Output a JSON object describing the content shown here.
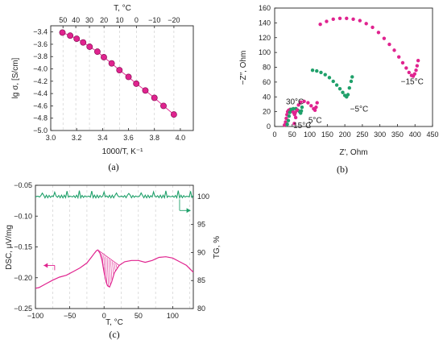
{
  "colors": {
    "magenta": "#e0238f",
    "green": "#1fa06a",
    "dark": "#222222"
  },
  "chart_data": [
    {
      "id": "a",
      "panel_label": "(a)",
      "type": "scatter",
      "xlabel": "1000/T, K⁻¹",
      "ylabel": "lg σ, [S/cm]",
      "top_axis_label": "T, °C",
      "xlim": [
        3.0,
        4.1
      ],
      "ylim": [
        -5.0,
        -3.3
      ],
      "x_ticks": [
        "3.0",
        "3.2",
        "3.4",
        "3.6",
        "3.8",
        "4.0"
      ],
      "y_ticks": [
        "−3.4",
        "−3.6",
        "−3.8",
        "−4.0",
        "−4.2",
        "−4.4",
        "−4.6",
        "−4.8",
        "−5.0"
      ],
      "top_ticks": [
        "50",
        "40",
        "30",
        "20",
        "10",
        "0",
        "−10",
        "−20"
      ],
      "grid": true,
      "series": [
        {
          "color": "#e0238f",
          "points": [
            [
              3.09,
              -3.41
            ],
            [
              3.15,
              -3.46
            ],
            [
              3.2,
              -3.51
            ],
            [
              3.25,
              -3.57
            ],
            [
              3.3,
              -3.64
            ],
            [
              3.36,
              -3.72
            ],
            [
              3.41,
              -3.81
            ],
            [
              3.47,
              -3.91
            ],
            [
              3.53,
              -4.02
            ],
            [
              3.6,
              -4.13
            ],
            [
              3.66,
              -4.24
            ],
            [
              3.73,
              -4.35
            ],
            [
              3.8,
              -4.47
            ],
            [
              3.87,
              -4.6
            ],
            [
              3.95,
              -4.74
            ]
          ]
        }
      ]
    },
    {
      "id": "b",
      "panel_label": "(b)",
      "type": "scatter",
      "xlabel": "Z′, Ohm",
      "ylabel": "−Z″, Ohm",
      "xlim": [
        0,
        450
      ],
      "ylim": [
        0,
        160
      ],
      "x_ticks": [
        "0",
        "50",
        "100",
        "150",
        "200",
        "250",
        "300",
        "350",
        "400",
        "450"
      ],
      "y_ticks": [
        "0",
        "20",
        "40",
        "60",
        "80",
        "100",
        "120",
        "140",
        "160"
      ],
      "grid": false,
      "annotations": [
        "30°C",
        "15°C",
        "5°C",
        "−5°C",
        "−15°C"
      ],
      "series": [
        {
          "label": "30°C",
          "color": "#e0238f",
          "points": [
            [
              28,
              2
            ],
            [
              31,
              6
            ],
            [
              33,
              11
            ],
            [
              35,
              16
            ],
            [
              37,
              20
            ],
            [
              40,
              22
            ],
            [
              44,
              23
            ],
            [
              48,
              22
            ],
            [
              52,
              20
            ],
            [
              55,
              18
            ],
            [
              57,
              16
            ],
            [
              59,
              19
            ],
            [
              61,
              24
            ]
          ]
        },
        {
          "label": "15°C",
          "color": "#1fa06a",
          "points": [
            [
              36,
              3
            ],
            [
              39,
              8
            ],
            [
              41,
              14
            ],
            [
              43,
              19
            ],
            [
              47,
              23
            ],
            [
              53,
              24
            ],
            [
              60,
              24
            ],
            [
              66,
              22
            ],
            [
              71,
              20
            ],
            [
              74,
              18
            ],
            [
              76,
              21
            ],
            [
              78,
              26
            ]
          ]
        },
        {
          "label": "5°C",
          "color": "#e0238f",
          "points": [
            [
              56,
              4
            ],
            [
              60,
              12
            ],
            [
              64,
              22
            ],
            [
              68,
              29
            ],
            [
              74,
              33
            ],
            [
              84,
              34
            ],
            [
              95,
              32
            ],
            [
              104,
              28
            ],
            [
              111,
              24
            ],
            [
              115,
              22
            ],
            [
              118,
              26
            ],
            [
              121,
              32
            ]
          ]
        },
        {
          "label": "−5°C",
          "color": "#1fa06a",
          "points": [
            [
              108,
              76
            ],
            [
              120,
              75
            ],
            [
              132,
              73
            ],
            [
              144,
              70
            ],
            [
              156,
              66
            ],
            [
              167,
              61
            ],
            [
              177,
              56
            ],
            [
              186,
              51
            ],
            [
              194,
              46
            ],
            [
              200,
              42
            ],
            [
              205,
              40
            ],
            [
              209,
              43
            ],
            [
              213,
              52
            ],
            [
              218,
              61
            ],
            [
              221,
              67
            ]
          ]
        },
        {
          "label": "−15°C",
          "color": "#e0238f",
          "points": [
            [
              130,
              138
            ],
            [
              148,
              142
            ],
            [
              167,
              145
            ],
            [
              186,
              146
            ],
            [
              205,
              146
            ],
            [
              224,
              145
            ],
            [
              243,
              143
            ],
            [
              261,
              139
            ],
            [
              279,
              134
            ],
            [
              296,
              127
            ],
            [
              312,
              119
            ],
            [
              327,
              111
            ],
            [
              341,
              103
            ],
            [
              354,
              94
            ],
            [
              365,
              86
            ],
            [
              375,
              79
            ],
            [
              383,
              73
            ],
            [
              390,
              69
            ],
            [
              395,
              68
            ],
            [
              399,
              71
            ],
            [
              403,
              76
            ],
            [
              406,
              82
            ],
            [
              409,
              89
            ]
          ]
        }
      ]
    },
    {
      "id": "c",
      "panel_label": "(c)",
      "type": "line",
      "xlabel": "T, °C",
      "ylabel": "DSC, μV/mg",
      "ylabel_right": "TG, %",
      "xlim": [
        -100,
        130
      ],
      "ylim": [
        -0.25,
        -0.05
      ],
      "ylim_right": [
        80,
        102
      ],
      "x_ticks": [
        "−100",
        "−50",
        "0",
        "50",
        "100"
      ],
      "y_ticks": [
        "−0.05",
        "−0.10",
        "−0.15",
        "−0.20",
        "−0.25"
      ],
      "y_ticks_right": [
        "100",
        "95",
        "90",
        "85",
        "80"
      ],
      "grid": true,
      "series": [
        {
          "axis": "left",
          "color": "#e0238f",
          "points": [
            [
              -100,
              -0.217
            ],
            [
              -95,
              -0.216
            ],
            [
              -85,
              -0.21
            ],
            [
              -75,
              -0.204
            ],
            [
              -65,
              -0.199
            ],
            [
              -55,
              -0.196
            ],
            [
              -45,
              -0.19
            ],
            [
              -35,
              -0.184
            ],
            [
              -25,
              -0.176
            ],
            [
              -18,
              -0.166
            ],
            [
              -14,
              -0.16
            ],
            [
              -11,
              -0.156
            ],
            [
              -9,
              -0.155
            ],
            [
              -6,
              -0.16
            ],
            [
              -3,
              -0.172
            ],
            [
              0,
              -0.191
            ],
            [
              3,
              -0.207
            ],
            [
              5,
              -0.213
            ],
            [
              8,
              -0.215
            ],
            [
              11,
              -0.207
            ],
            [
              15,
              -0.192
            ],
            [
              22,
              -0.18
            ],
            [
              30,
              -0.174
            ],
            [
              40,
              -0.172
            ],
            [
              50,
              -0.172
            ],
            [
              60,
              -0.175
            ],
            [
              70,
              -0.172
            ],
            [
              80,
              -0.167
            ],
            [
              90,
              -0.166
            ],
            [
              100,
              -0.168
            ],
            [
              110,
              -0.174
            ],
            [
              120,
              -0.18
            ],
            [
              130,
              -0.191
            ]
          ]
        },
        {
          "axis": "right",
          "color": "#1fa06a",
          "points": [
            [
              -100,
              100.0
            ],
            [
              -50,
              100.0
            ],
            [
              0,
              100.0
            ],
            [
              50,
              100.0
            ],
            [
              100,
              100.0
            ],
            [
              130,
              100.0
            ]
          ]
        }
      ]
    }
  ]
}
